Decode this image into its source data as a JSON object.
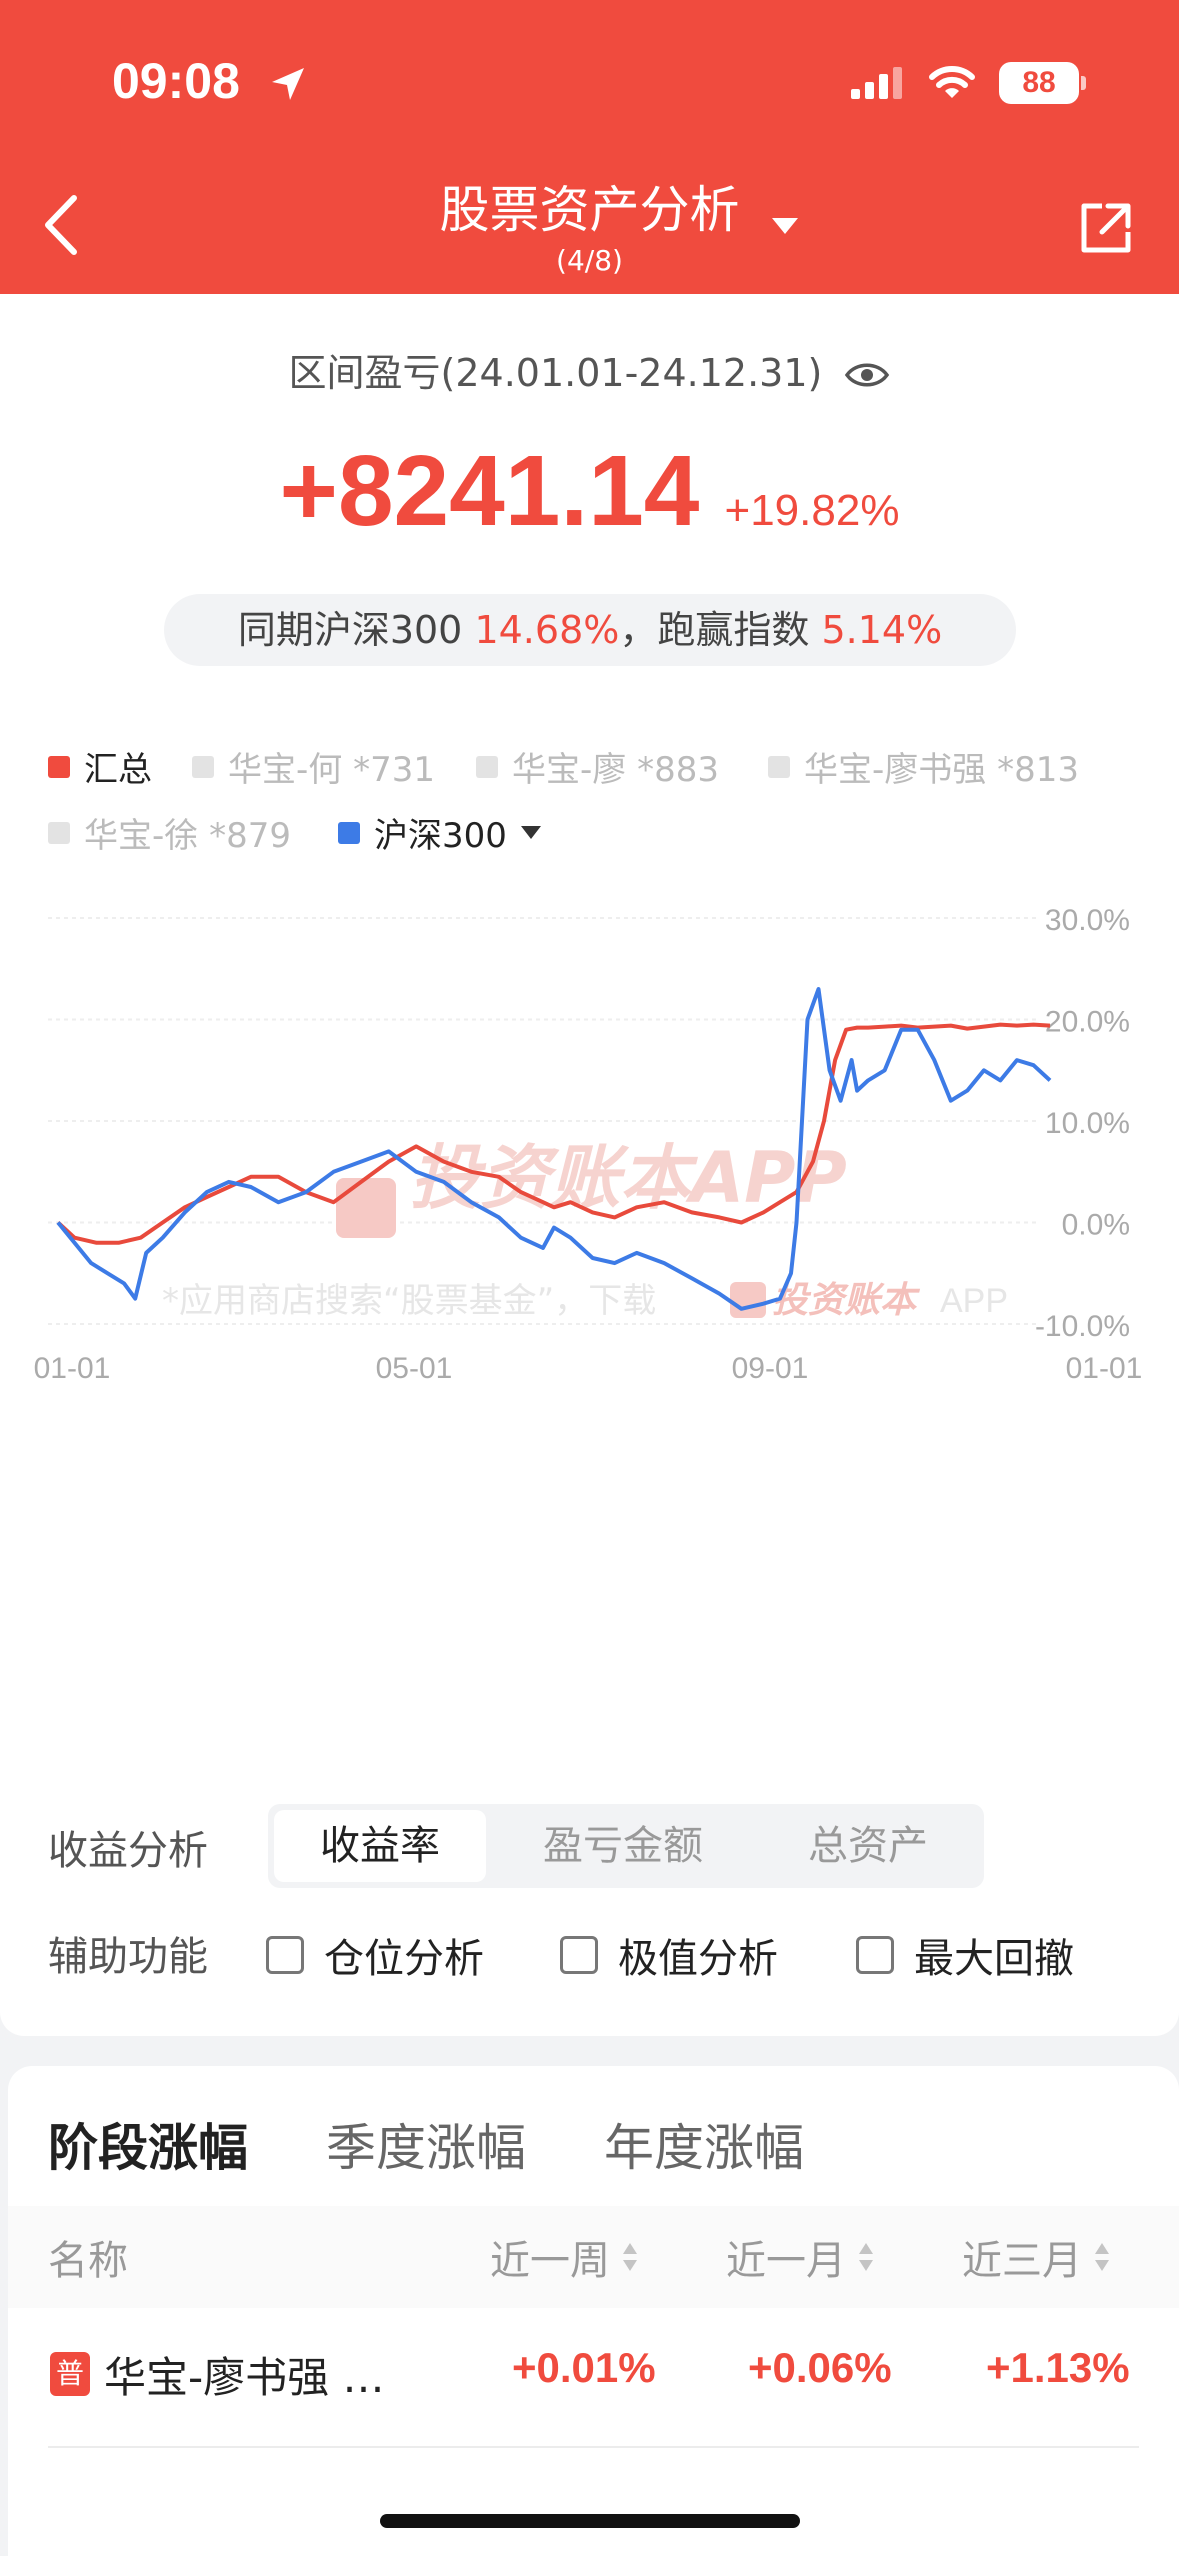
{
  "status_bar": {
    "time": "09:08",
    "battery": "88"
  },
  "header": {
    "title": "股票资产分析",
    "subtitle": "(4/8)"
  },
  "summary": {
    "range_label": "区间盈亏(24.01.01-24.12.31)",
    "profit": "+8241.14",
    "profit_pct": "+19.82%",
    "bench_prefix": "同期沪深300 ",
    "bench_pct": "14.68%",
    "bench_mid": "，跑赢指数 ",
    "beat_pct": "5.14%"
  },
  "legend": [
    {
      "label": "汇总",
      "color": "#f04b3e",
      "active": true
    },
    {
      "label": "华宝-何 *731",
      "color": "#e3e3e3",
      "active": false
    },
    {
      "label": "华宝-廖 *883",
      "color": "#e3e3e3",
      "active": false
    },
    {
      "label": "华宝-廖书强 *813",
      "color": "#e3e3e3",
      "active": false
    },
    {
      "label": "华宝-徐 *879",
      "color": "#e3e3e3",
      "active": false
    },
    {
      "label": "沪深300",
      "color": "#3d7be6",
      "active": true
    }
  ],
  "chart_data": {
    "type": "line",
    "x_ticks": [
      "01-01",
      "05-01",
      "09-01",
      "01-01"
    ],
    "y_ticks": [
      "30.0%",
      "20.0%",
      "10.0%",
      "0.0%",
      "-10.0%"
    ],
    "ylim": [
      -10,
      30
    ],
    "watermark": "投资账本APP",
    "footer_note": "*应用商店搜索“股票基金”，下载",
    "footer_brand": "投资账本",
    "footer_app": "APP",
    "series": [
      {
        "name": "汇总",
        "color": "#e84a3c",
        "x": [
          0,
          6,
          14,
          22,
          30,
          38,
          46,
          54,
          62,
          70,
          80,
          90,
          100,
          110,
          120,
          130,
          140,
          150,
          160,
          168,
          176,
          180,
          186,
          194,
          202,
          210,
          220,
          230,
          240,
          248,
          256,
          262,
          268,
          274,
          278,
          282,
          286,
          290,
          294,
          300,
          306,
          312,
          318,
          324,
          330,
          336,
          342,
          348,
          354,
          360
        ],
        "y": [
          0,
          -1.5,
          -2,
          -2,
          -1.5,
          0,
          1.5,
          2.5,
          3.5,
          4.5,
          4.5,
          3,
          2,
          4,
          6,
          7.5,
          6,
          5,
          4.5,
          3,
          2,
          1.5,
          2,
          1,
          0.5,
          1.5,
          2,
          1,
          0.5,
          0,
          1,
          2,
          3,
          6,
          10,
          16,
          19,
          19.2,
          19.2,
          19.3,
          19.4,
          19.2,
          19.3,
          19.4,
          19.1,
          19.3,
          19.5,
          19.4,
          19.5,
          19.4
        ]
      },
      {
        "name": "沪深300",
        "color": "#3d7be6",
        "x": [
          0,
          6,
          12,
          18,
          24,
          28,
          32,
          38,
          46,
          54,
          62,
          70,
          80,
          90,
          100,
          110,
          120,
          130,
          140,
          150,
          160,
          168,
          176,
          180,
          186,
          194,
          202,
          210,
          220,
          230,
          240,
          248,
          256,
          262,
          266,
          268,
          270,
          272,
          276,
          280,
          284,
          288,
          290,
          294,
          300,
          306,
          312,
          318,
          324,
          330,
          336,
          342,
          348,
          354,
          360
        ],
        "y": [
          0,
          -2,
          -4,
          -5,
          -6,
          -7.5,
          -3,
          -1.5,
          1,
          3,
          4,
          3.5,
          2,
          3,
          5,
          6,
          7,
          5,
          4,
          2,
          0.5,
          -1.5,
          -2.5,
          -0.5,
          -1.5,
          -3.5,
          -4,
          -3,
          -4,
          -5.5,
          -7,
          -8.5,
          -8,
          -7.5,
          -5,
          0,
          10,
          20,
          23,
          15,
          12,
          16,
          13,
          14,
          15,
          19,
          19,
          16,
          12,
          13,
          15,
          14,
          16,
          15.5,
          14
        ]
      }
    ]
  },
  "controls": {
    "analysis_label": "收益分析",
    "segments": [
      "收益率",
      "盈亏金额",
      "总资产"
    ],
    "aux_label": "辅助功能",
    "checkboxes": [
      "仓位分析",
      "极值分析",
      "最大回撤"
    ]
  },
  "performance": {
    "tabs": [
      "阶段涨幅",
      "季度涨幅",
      "年度涨幅"
    ],
    "columns": [
      "名称",
      "近一周",
      "近一月",
      "近三月"
    ],
    "rows": [
      {
        "badge": "普",
        "name": "华宝-廖书强 …",
        "week": "+0.01%",
        "month": "+0.06%",
        "three_month": "+1.13%"
      }
    ]
  }
}
